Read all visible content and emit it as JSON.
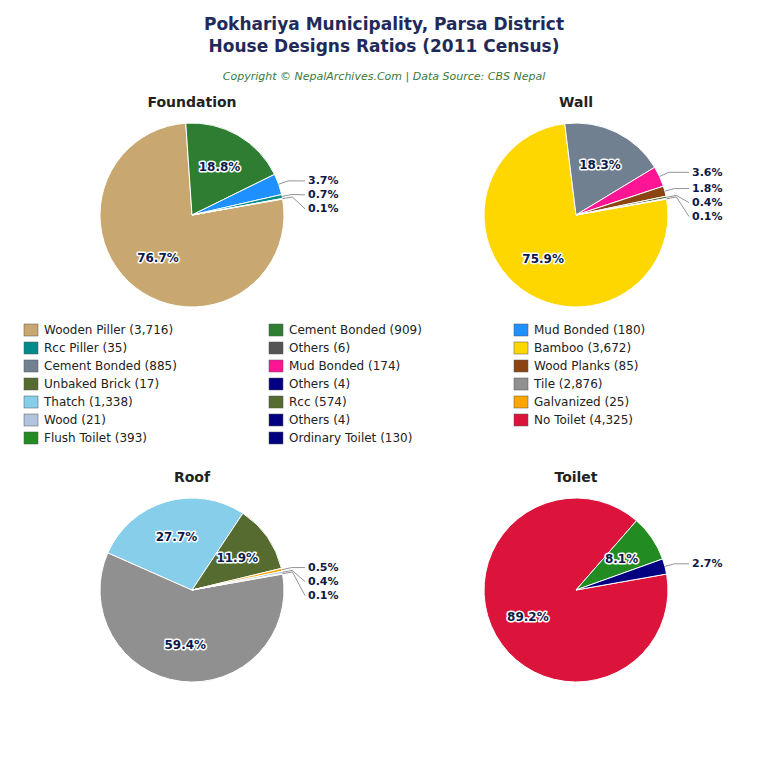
{
  "title": "Pokhariya Municipality, Parsa District\nHouse Designs Ratios (2011 Census)",
  "subtitle": "Copyright © NepalArchives.Com | Data Source: CBS Nepal",
  "chart_data": [
    {
      "type": "pie",
      "title": "Foundation",
      "categories": [
        "Wooden Piller (3,716)",
        "Cement Bonded (909)",
        "Mud Bonded (180)",
        "Rcc Piller (35)",
        "Others (6)"
      ],
      "values": [
        76.7,
        18.8,
        3.7,
        0.7,
        0.1
      ],
      "value_labels": [
        "76.7%",
        "18.8%",
        "3.7%",
        "0.7%",
        "0.1%"
      ],
      "colors": [
        "#c8a870",
        "#2e7d32",
        "#1e90ff",
        "#008b8b",
        "#555555"
      ],
      "data_labels": true
    },
    {
      "type": "pie",
      "title": "Wall",
      "categories": [
        "Bamboo (3,672)",
        "Cement Bonded (885)",
        "Mud Bonded (174)",
        "Wood Planks (85)",
        "Unbaked Brick (17)",
        "Others (4)"
      ],
      "values": [
        75.9,
        18.3,
        3.6,
        1.8,
        0.4,
        0.1
      ],
      "value_labels": [
        "75.9%",
        "18.3%",
        "3.6%",
        "1.8%",
        "0.4%",
        "0.1%"
      ],
      "colors": [
        "#ffd700",
        "#708090",
        "#ff1493",
        "#8b4513",
        "#556b2f",
        "#000080"
      ],
      "data_labels": true
    },
    {
      "type": "pie",
      "title": "Roof",
      "categories": [
        "Tile (2,876)",
        "Thatch (1,338)",
        "Rcc (574)",
        "Galvanized (25)",
        "Wood (21)",
        "Others (4)"
      ],
      "values": [
        59.4,
        27.7,
        11.9,
        0.5,
        0.4,
        0.1
      ],
      "value_labels": [
        "59.4%",
        "27.7%",
        "11.9%",
        "0.5%",
        "0.4%",
        "0.1%"
      ],
      "colors": [
        "#909090",
        "#87ceeb",
        "#556b2f",
        "#ffa500",
        "#b0c4de",
        "#000080"
      ],
      "data_labels": true
    },
    {
      "type": "pie",
      "title": "Toilet",
      "categories": [
        "No Toilet (4,325)",
        "Flush Toilet (393)",
        "Ordinary Toilet (130)"
      ],
      "values": [
        89.2,
        8.1,
        2.7
      ],
      "value_labels": [
        "89.2%",
        "8.1%",
        "2.7%"
      ],
      "colors": [
        "#dc143c",
        "#228b22",
        "#000080"
      ],
      "data_labels": true
    }
  ]
}
